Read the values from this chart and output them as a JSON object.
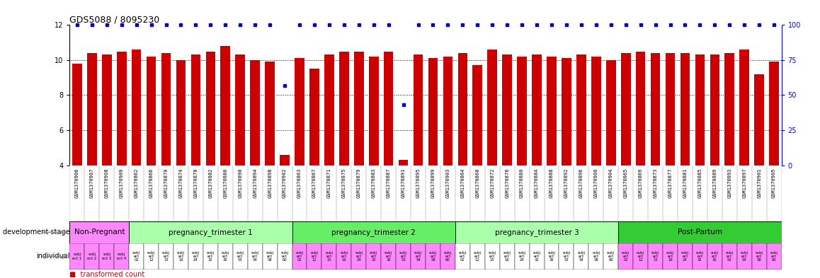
{
  "title": "GDS5088 / 8095230",
  "gsm_labels": [
    "GSM1370906",
    "GSM1370907",
    "GSM1370908",
    "GSM1370909",
    "GSM1370862",
    "GSM1370866",
    "GSM1370870",
    "GSM1370874",
    "GSM1370878",
    "GSM1370882",
    "GSM1370886",
    "GSM1370890",
    "GSM1370894",
    "GSM1370898",
    "GSM1370902",
    "GSM1370863",
    "GSM1370867",
    "GSM1370871",
    "GSM1370875",
    "GSM1370879",
    "GSM1370883",
    "GSM1370887",
    "GSM1370891",
    "GSM1370895",
    "GSM1370899",
    "GSM1370903",
    "GSM1370864",
    "GSM1370868",
    "GSM1370872",
    "GSM1370876",
    "GSM1370880",
    "GSM1370884",
    "GSM1370888",
    "GSM1370892",
    "GSM1370896",
    "GSM1370900",
    "GSM1370904",
    "GSM1370865",
    "GSM1370869",
    "GSM1370873",
    "GSM1370877",
    "GSM1370881",
    "GSM1370885",
    "GSM1370889",
    "GSM1370893",
    "GSM1370897",
    "GSM1370901",
    "GSM1370905"
  ],
  "bar_heights": [
    9.8,
    10.4,
    10.3,
    10.5,
    10.6,
    10.2,
    10.4,
    10.0,
    10.3,
    10.5,
    10.8,
    10.3,
    10.0,
    9.9,
    4.6,
    10.1,
    9.5,
    10.3,
    10.5,
    10.5,
    10.2,
    10.5,
    4.3,
    10.3,
    10.1,
    10.2,
    10.4,
    9.7,
    10.6,
    10.3,
    10.2,
    10.3,
    10.2,
    10.1,
    10.3,
    10.2,
    10.0,
    10.4,
    10.5,
    10.4,
    10.4,
    10.4,
    10.3,
    10.3,
    10.4,
    10.6,
    9.2,
    9.9
  ],
  "blue_dot_exceptions": {
    "14": 57,
    "22": 43
  },
  "bar_color": "#cc0000",
  "dot_color": "#0000cc",
  "ylim_left": [
    4,
    12
  ],
  "ylim_right": [
    0,
    100
  ],
  "yticks_left": [
    4,
    6,
    8,
    10,
    12
  ],
  "yticks_right": [
    0,
    25,
    50,
    75,
    100
  ],
  "dev_stage_groups": [
    {
      "label": "Non-Pregnant",
      "start": 0,
      "end": 3,
      "color": "#ff88ff"
    },
    {
      "label": "pregnancy_trimester 1",
      "start": 4,
      "end": 14,
      "color": "#aaffaa"
    },
    {
      "label": "pregnancy_trimester 2",
      "start": 15,
      "end": 25,
      "color": "#66ee66"
    },
    {
      "label": "pregnancy_trimester 3",
      "start": 26,
      "end": 36,
      "color": "#aaffaa"
    },
    {
      "label": "Post-Partum",
      "start": 37,
      "end": 47,
      "color": "#33cc33"
    }
  ],
  "ind_colors": [
    "#ff88ff",
    "#ff88ff",
    "#ff88ff",
    "#ff88ff",
    "#ffffff",
    "#ffffff",
    "#ffffff",
    "#ffffff",
    "#ffffff",
    "#ffffff",
    "#ffffff",
    "#ffffff",
    "#ffffff",
    "#ffffff",
    "#ffffff",
    "#ff88ff",
    "#ff88ff",
    "#ff88ff",
    "#ff88ff",
    "#ff88ff",
    "#ff88ff",
    "#ff88ff",
    "#ff88ff",
    "#ff88ff",
    "#ff88ff",
    "#ff88ff",
    "#ffffff",
    "#ffffff",
    "#ffffff",
    "#ffffff",
    "#ffffff",
    "#ffffff",
    "#ffffff",
    "#ffffff",
    "#ffffff",
    "#ffffff",
    "#ffffff",
    "#ff88ff",
    "#ff88ff",
    "#ff88ff",
    "#ff88ff",
    "#ff88ff",
    "#ff88ff",
    "#ff88ff",
    "#ff88ff",
    "#ff88ff",
    "#ff88ff",
    "#ff88ff"
  ],
  "ind_labels": [
    "subj\nect 1",
    "subj\nect 2",
    "subj\nect 3",
    "subj\nect 4",
    "subj\nect\n02",
    "subj\nect\n12",
    "subj\nect\n15",
    "subj\nect\n16",
    "subj\nect\n24",
    "subj\nect\n32",
    "subj\nect\n36",
    "subj\nect\n53",
    "subj\nect\n54",
    "subj\nect\n58",
    "subj\nect\n60",
    "subj\nect\n02",
    "subj\nect\n12",
    "subj\nect\n15",
    "subj\nect\n16",
    "subj\nect\n24",
    "subj\nect\n32",
    "subj\nect\n36",
    "subj\nect\n53",
    "subj\nect\n54",
    "subj\nect\n58",
    "subj\nect\n60",
    "subj\nect\n02",
    "subj\nect\n12",
    "subj\nect\n15",
    "subj\nect\n16",
    "subj\nect\n24",
    "subj\nect\n32",
    "subj\nect\n36",
    "subj\nect\n53",
    "subj\nect\n54",
    "subj\nect\n58",
    "subj\nect\n60",
    "subj\nect\n02",
    "subj\nect\n12",
    "subj\nect\n15",
    "subj\nect\n16",
    "subj\nect\n24",
    "subj\nect\n32",
    "subj\nect\n36",
    "subj\nect\n53",
    "subj\nect\n54",
    "subj\nect\n58",
    "subj\nect\n60"
  ]
}
